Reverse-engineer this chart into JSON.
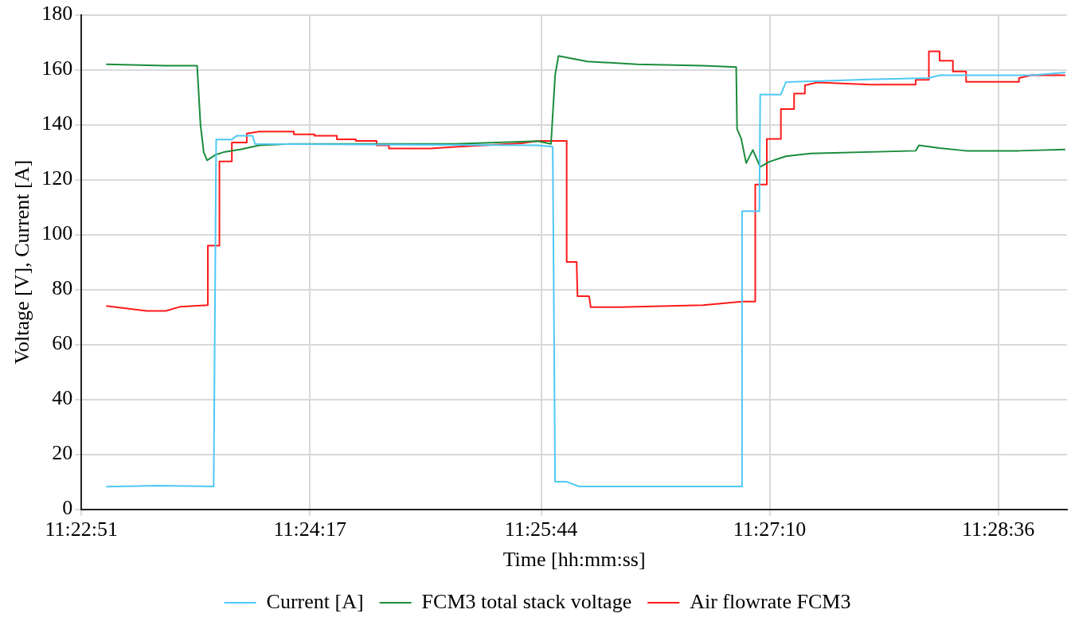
{
  "chart_data": {
    "type": "line",
    "xlabel": "Time [hh:mm:ss]",
    "ylabel": "Voltage [V], Current [A]",
    "xlim": [
      11.38083,
      11.48386
    ],
    "xticks": [
      {
        "value": 11.38083,
        "label": "11:22:51"
      },
      {
        "value": 11.40472,
        "label": "11:24:17"
      },
      {
        "value": 11.42889,
        "label": "11:25:44"
      },
      {
        "value": 11.45278,
        "label": "11:27:10"
      },
      {
        "value": 11.47667,
        "label": "11:28:36"
      }
    ],
    "ylim": [
      0,
      180
    ],
    "yticks": [
      0,
      20,
      40,
      60,
      80,
      100,
      120,
      140,
      160,
      180
    ],
    "grid": true,
    "legend": "bottom",
    "marker": "none",
    "line_style": "solid",
    "series": [
      {
        "name": "Current [A]",
        "color": "#4fc8f5",
        "x": [
          11.38342,
          11.38878,
          11.39466,
          11.39492,
          11.39656,
          11.39708,
          11.39872,
          11.39898,
          11.42854,
          11.4301,
          11.43035,
          11.43156,
          11.43286,
          11.44989,
          11.44989,
          11.4517,
          11.45179,
          11.45395,
          11.45447,
          11.46311,
          11.46942,
          11.47054,
          11.48023,
          11.48368
        ],
        "values": [
          8.2,
          8.6,
          8.3,
          134.6,
          134.6,
          136,
          136,
          133,
          132.5,
          132,
          10,
          10,
          8.3,
          8.3,
          108.5,
          108.5,
          151,
          151,
          155.5,
          156.5,
          157,
          158,
          158,
          159
        ]
      },
      {
        "name": "FCM3 total stack voltage",
        "color": "#1a8c3c",
        "x": [
          11.38342,
          11.38965,
          11.39293,
          11.39328,
          11.39362,
          11.39397,
          11.39483,
          11.3957,
          11.39742,
          11.39941,
          11.40261,
          11.4199,
          11.42854,
          11.42992,
          11.43035,
          11.4307,
          11.43373,
          11.43891,
          11.44583,
          11.44928,
          11.44937,
          11.4498,
          11.45032,
          11.45102,
          11.45179,
          11.45274,
          11.45447,
          11.45706,
          11.46804,
          11.46838,
          11.47054,
          11.47331,
          11.47884,
          11.48368
        ],
        "values": [
          162,
          161.5,
          161.5,
          140,
          130,
          127,
          129,
          130,
          131,
          132.5,
          133,
          133,
          134,
          133,
          158,
          165,
          163,
          162,
          161.5,
          161,
          138.4,
          135,
          126,
          130.8,
          124.6,
          126.5,
          128.5,
          129.5,
          130.5,
          132.5,
          131.5,
          130.5,
          130.5,
          131
        ]
      },
      {
        "name": "Air flowrate FCM3",
        "color": "#ff1a1a",
        "x": [
          11.38342,
          11.38766,
          11.38965,
          11.39112,
          11.39405,
          11.39405,
          11.39526,
          11.39526,
          11.39656,
          11.39656,
          11.39812,
          11.39812,
          11.39941,
          11.40304,
          11.40304,
          11.4052,
          11.4052,
          11.40754,
          11.40754,
          11.40952,
          11.40952,
          11.41169,
          11.41169,
          11.41298,
          11.41298,
          11.4173,
          11.4199,
          11.42681,
          11.42854,
          11.43156,
          11.43156,
          11.4326,
          11.43269,
          11.4339,
          11.43407,
          11.43718,
          11.44583,
          11.44989,
          11.45127,
          11.45127,
          11.45248,
          11.45248,
          11.45395,
          11.45395,
          11.45533,
          11.45533,
          11.45646,
          11.45646,
          11.45775,
          11.46328,
          11.46804,
          11.46804,
          11.46942,
          11.46942,
          11.47054,
          11.47054,
          11.47193,
          11.47193,
          11.47331,
          11.47331,
          11.47884,
          11.47884,
          11.48023,
          11.48368
        ],
        "values": [
          74,
          72.2,
          72.2,
          73.7,
          74.3,
          96,
          96,
          126.6,
          126.6,
          133.5,
          133.5,
          136.8,
          137.5,
          137.5,
          136.5,
          136.5,
          136,
          136,
          134.7,
          134.7,
          134.1,
          134.1,
          132.5,
          132.5,
          131.3,
          131.3,
          131.9,
          133.2,
          134.1,
          134.1,
          90,
          90,
          77.6,
          77.6,
          73.6,
          73.6,
          74.3,
          75.6,
          75.6,
          118.2,
          118.2,
          134.8,
          134.8,
          145.7,
          145.7,
          151.3,
          151.3,
          154.3,
          155.4,
          154.6,
          154.6,
          156.3,
          156.3,
          166.7,
          166.7,
          163.3,
          163.3,
          159.4,
          159.4,
          155.6,
          155.6,
          157,
          158.1,
          158
        ]
      }
    ]
  }
}
